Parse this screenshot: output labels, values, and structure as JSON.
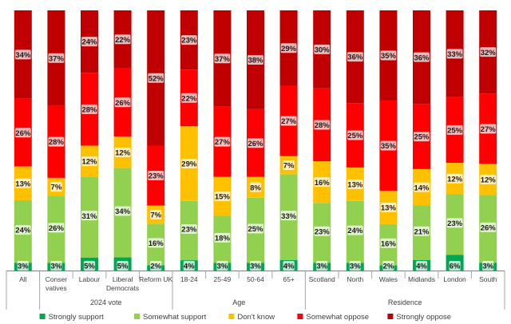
{
  "chart_data": {
    "type": "bar",
    "stacked": true,
    "percent_stacked": true,
    "groups": [
      {
        "label": "",
        "categories": [
          "All"
        ]
      },
      {
        "label": "2024 vote",
        "categories": [
          "Conser vatives",
          "Labour",
          "Liberal Democrats",
          "Reform UK"
        ]
      },
      {
        "label": "Age",
        "categories": [
          "18-24",
          "25-49",
          "50-64",
          "65+"
        ]
      },
      {
        "label": "Residence",
        "categories": [
          "Scotland",
          "North",
          "Wales",
          "Midlands",
          "London",
          "South"
        ]
      }
    ],
    "category_lines": {
      "Conser vatives": [
        "Conser",
        "vatives"
      ],
      "Liberal Democrats": [
        "Liberal",
        "Democrats"
      ]
    },
    "categories": [
      "All",
      "Conser vatives",
      "Labour",
      "Liberal Democrats",
      "Reform UK",
      "18-24",
      "25-49",
      "50-64",
      "65+",
      "Scotland",
      "North",
      "Wales",
      "Midlands",
      "London",
      "South"
    ],
    "series": [
      {
        "name": "Strongly support",
        "color": "#00a651",
        "values": [
          3,
          3,
          5,
          5,
          2,
          4,
          3,
          3,
          4,
          3,
          3,
          2,
          4,
          6,
          3
        ]
      },
      {
        "name": "Somewhat support",
        "color": "#92d050",
        "values": [
          24,
          26,
          31,
          34,
          16,
          23,
          18,
          25,
          33,
          23,
          24,
          16,
          21,
          23,
          26
        ]
      },
      {
        "name": "Don't know",
        "color": "#ffc000",
        "values": [
          13,
          7,
          12,
          12,
          7,
          29,
          15,
          8,
          7,
          16,
          13,
          13,
          14,
          12,
          12
        ]
      },
      {
        "name": "Somewhat oppose",
        "color": "#ff0000",
        "values": [
          26,
          28,
          28,
          26,
          23,
          22,
          27,
          26,
          27,
          28,
          25,
          35,
          25,
          25,
          27
        ]
      },
      {
        "name": "Strongly oppose",
        "color": "#c00000",
        "values": [
          34,
          37,
          24,
          22,
          52,
          23,
          37,
          38,
          29,
          30,
          36,
          35,
          36,
          33,
          32
        ]
      }
    ],
    "value_suffix": "%",
    "ylim": [
      0,
      100
    ],
    "grid": false,
    "legend_position": "bottom"
  }
}
